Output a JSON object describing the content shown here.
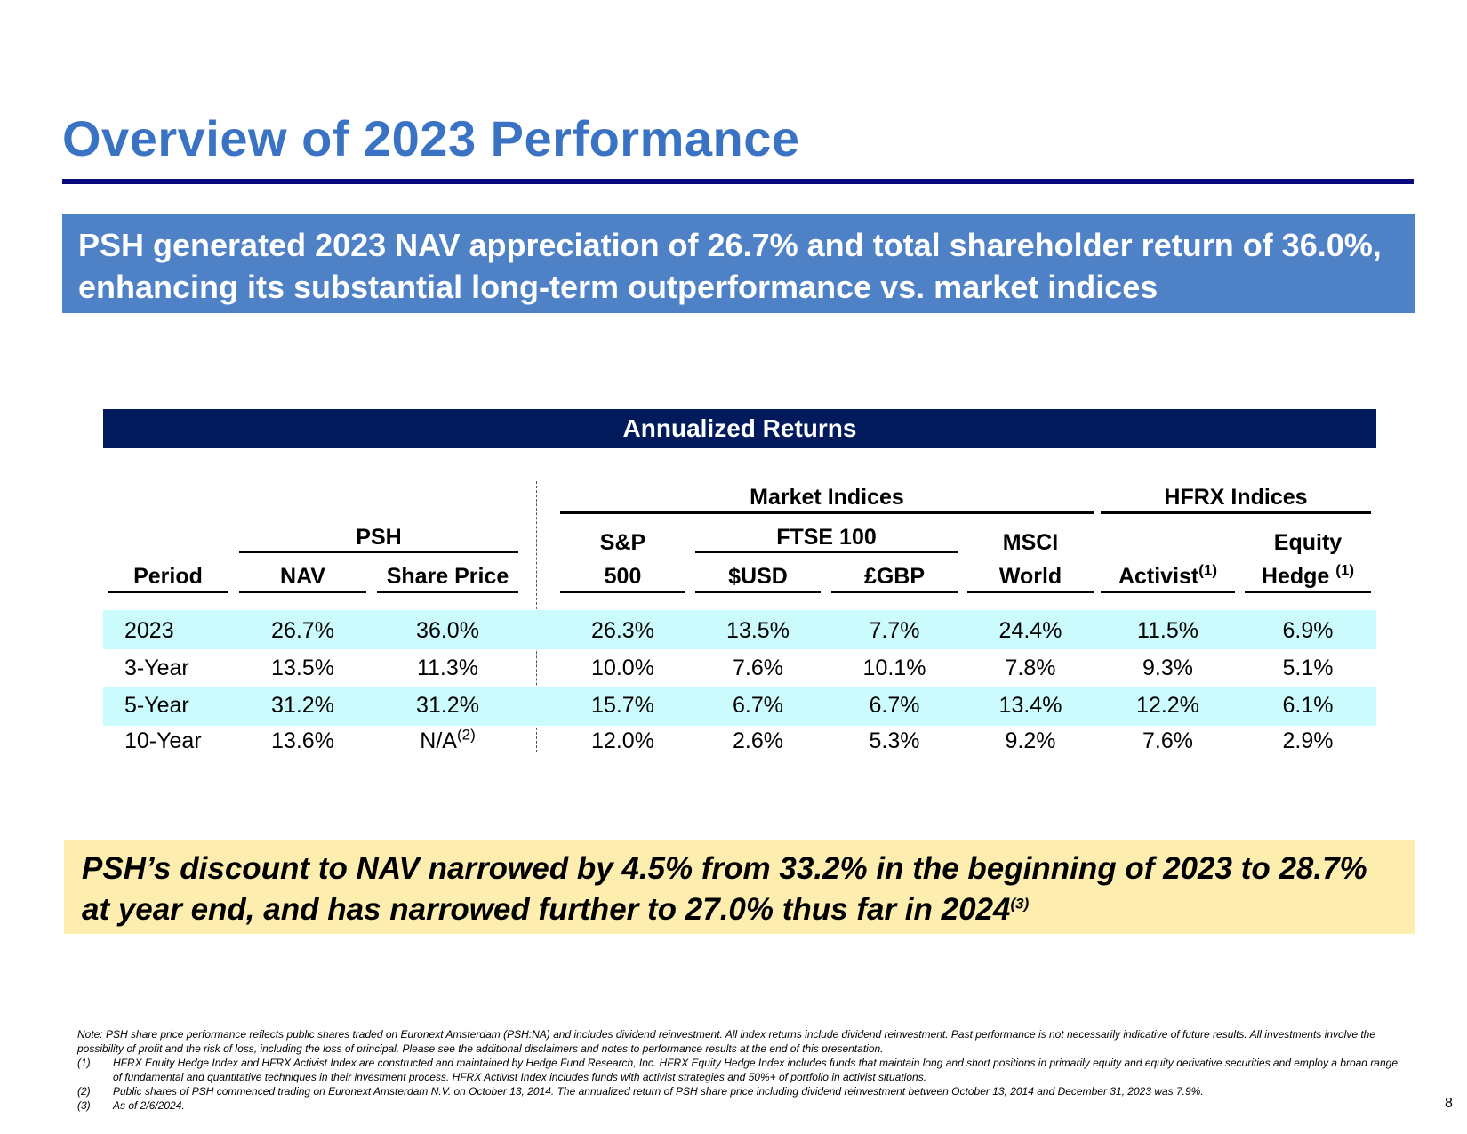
{
  "title": "Overview of 2023 Performance",
  "headline": "PSH generated 2023 NAV appreciation of 26.7% and total shareholder return of 36.0%, enhancing its substantial long-term outperformance vs. market indices",
  "table": {
    "banner": "Annualized Returns",
    "group_headers": {
      "psh": "PSH",
      "market": "Market Indices",
      "hfrx": "HFRX Indices",
      "ftse": "FTSE 100"
    },
    "col_headers": {
      "period": "Period",
      "nav": "NAV",
      "share_price": "Share Price",
      "sp_top": "S&P",
      "sp_bottom": "500",
      "usd": "$USD",
      "gbp": "£GBP",
      "msci_top": "MSCI",
      "msci_bottom": "World",
      "activist": "Activist",
      "activist_note": "(1)",
      "equity_top": "Equity",
      "equity_bottom": "Hedge",
      "equity_note": "(1)"
    },
    "rows": [
      {
        "period": "2023",
        "nav": "26.7%",
        "share": "36.0%",
        "sp": "26.3%",
        "usd": "13.5%",
        "gbp": "7.7%",
        "msci": "24.4%",
        "activist": "11.5%",
        "equity": "6.9%"
      },
      {
        "period": "3-Year",
        "nav": "13.5%",
        "share": "11.3%",
        "sp": "10.0%",
        "usd": "7.6%",
        "gbp": "10.1%",
        "msci": "7.8%",
        "activist": "9.3%",
        "equity": "5.1%"
      },
      {
        "period": "5-Year",
        "nav": "31.2%",
        "share": "31.2%",
        "sp": "15.7%",
        "usd": "6.7%",
        "gbp": "6.7%",
        "msci": "13.4%",
        "activist": "12.2%",
        "equity": "6.1%"
      },
      {
        "period": "10-Year",
        "nav": "13.6%",
        "share": "N/A",
        "share_note": "(2)",
        "sp": "12.0%",
        "usd": "2.6%",
        "gbp": "5.3%",
        "msci": "9.2%",
        "activist": "7.6%",
        "equity": "2.9%"
      }
    ]
  },
  "callout": {
    "text": "PSH’s discount to NAV narrowed by 4.5% from 33.2% in the beginning of 2023 to 28.7% at year end, and has narrowed further to 27.0% thus far in 2024",
    "note": "(3)"
  },
  "notes": {
    "main": "Note: PSH share price performance reflects public shares traded on Euronext Amsterdam (PSH:NA) and includes dividend reinvestment. All index returns include dividend reinvestment. Past performance is not necessarily indicative of future results. All investments involve the possibility of profit and the risk of loss, including the loss of principal. Please see the additional disclaimers and notes to performance results at the end of this presentation.",
    "fn1_num": "(1)",
    "fn1": "HFRX Equity Hedge Index and HFRX Activist Index are constructed and maintained by Hedge Fund Research, Inc. HFRX Equity Hedge Index includes funds that maintain long and short positions in primarily equity and equity derivative securities and employ a broad range of fundamental and quantitative techniques in their investment process. HFRX Activist Index includes funds with activist strategies and 50%+ of portfolio in activist situations.",
    "fn2_num": "(2)",
    "fn2": "Public shares of PSH commenced trading on Euronext Amsterdam N.V. on October 13, 2014. The annualized return of PSH share price including dividend reinvestment between October 13, 2014 and December 31, 2023 was 7.9%.",
    "fn3_num": "(3)",
    "fn3": "As of 2/6/2024."
  },
  "page_number": "8"
}
